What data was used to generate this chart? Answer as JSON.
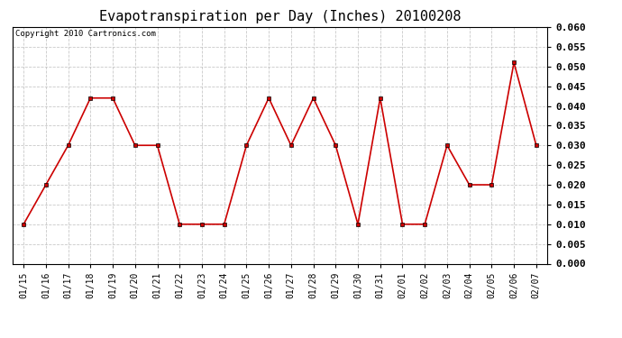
{
  "title": "Evapotranspiration per Day (Inches) 20100208",
  "copyright_text": "Copyright 2010 Cartronics.com",
  "labels": [
    "01/15",
    "01/16",
    "01/17",
    "01/18",
    "01/19",
    "01/20",
    "01/21",
    "01/22",
    "01/23",
    "01/24",
    "01/25",
    "01/26",
    "01/27",
    "01/28",
    "01/29",
    "01/30",
    "01/31",
    "02/01",
    "02/02",
    "02/03",
    "02/04",
    "02/05",
    "02/06",
    "02/07"
  ],
  "values": [
    0.01,
    0.02,
    0.03,
    0.042,
    0.042,
    0.03,
    0.03,
    0.01,
    0.01,
    0.01,
    0.03,
    0.042,
    0.03,
    0.042,
    0.03,
    0.01,
    0.042,
    0.01,
    0.01,
    0.03,
    0.02,
    0.02,
    0.051,
    0.03
  ],
  "line_color": "#cc0000",
  "marker": "s",
  "marker_size": 3,
  "ylim": [
    0.0,
    0.06
  ],
  "yticks": [
    0.0,
    0.005,
    0.01,
    0.015,
    0.02,
    0.025,
    0.03,
    0.035,
    0.04,
    0.045,
    0.05,
    0.055,
    0.06
  ],
  "grid_color": "#bbbbbb",
  "background_color": "#ffffff",
  "title_fontsize": 11,
  "copyright_fontsize": 6.5,
  "tick_fontsize": 7,
  "ytick_fontsize": 8,
  "line_width": 1.2
}
